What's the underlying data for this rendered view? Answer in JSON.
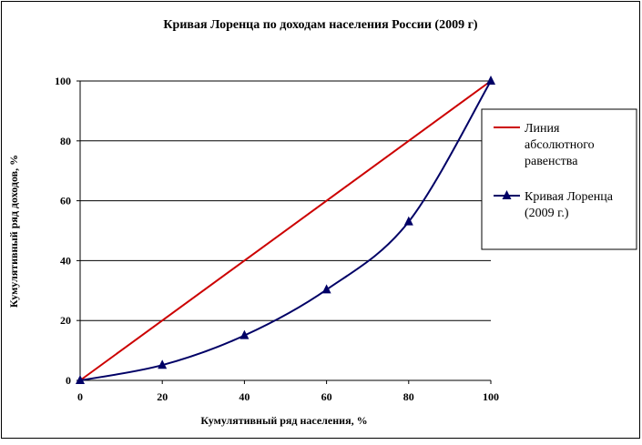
{
  "chart_data": {
    "type": "line",
    "title": "Кривая Лоренца по доходам населения России (2009 г)",
    "xlabel": "Кумулятивный ряд населения, %",
    "ylabel": "Кумулятивный ряд доходов, %",
    "xlim": [
      0,
      100
    ],
    "ylim": [
      0,
      100
    ],
    "x_ticks": [
      "0",
      "20",
      "40",
      "60",
      "80",
      "100"
    ],
    "y_ticks": [
      "0",
      "20",
      "40",
      "60",
      "80",
      "100"
    ],
    "grid": "horizontal",
    "legend_position": "right",
    "series": [
      {
        "name": "Линия абсолютного равенства",
        "legend_lines": [
          "Линия",
          "абсолютного",
          "равенства"
        ],
        "color": "#cc0000",
        "marker": "none",
        "x": [
          0,
          100
        ],
        "y": [
          0,
          100
        ]
      },
      {
        "name": "Кривая Лоренца (2009 г.)",
        "legend_lines": [
          "Кривая Лоренца",
          "(2009 г.)"
        ],
        "color": "#000066",
        "marker": "triangle",
        "x": [
          0,
          20,
          40,
          60,
          80,
          100
        ],
        "y": [
          0,
          5.1,
          15.0,
          30.3,
          53.0,
          100
        ]
      }
    ]
  }
}
